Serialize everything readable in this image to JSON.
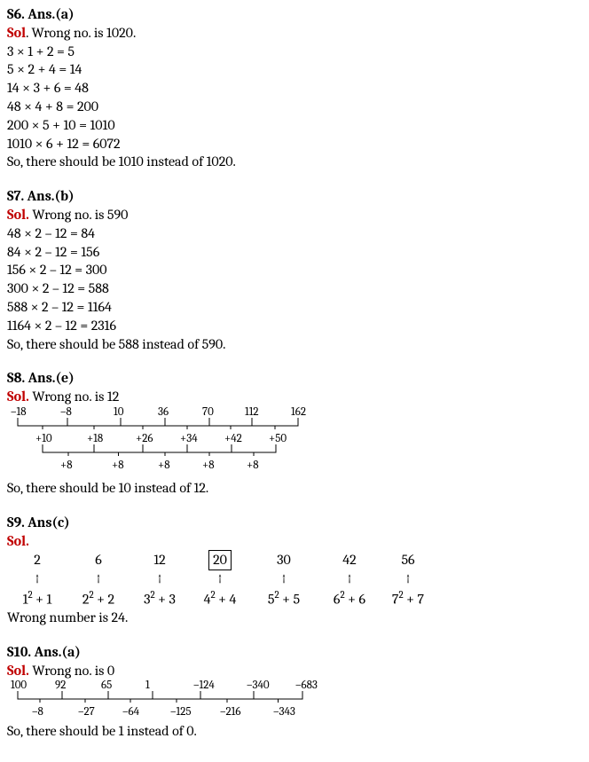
{
  "s6": {
    "heading": "S6. Ans.(a)",
    "sol_label": "Sol",
    "wrong_text": ". Wrong no. is 1020.",
    "lines": [
      "3 × 1 + 2 = 5",
      "5 × 2 + 4 = 14",
      "14 × 3 + 6 = 48",
      "48 × 4 + 8 = 200",
      "200 × 5 + 10 = 1010",
      "1010 × 6 + 12 = 6072"
    ],
    "conclusion": "So, there should be 1010 instead of 1020."
  },
  "s7": {
    "heading": "S7. Ans.(b)",
    "sol_label": "Sol.",
    "wrong_text": " Wrong no. is 590",
    "lines": [
      "48 × 2 – 12 = 84",
      "84 × 2 – 12 = 156",
      "156 × 2 – 12 = 300",
      "300 × 2 – 12 = 588",
      "588 × 2 – 12 = 1164",
      "1164 × 2 – 12 = 2316"
    ],
    "conclusion": "So, there should be 588 instead of 590."
  },
  "s8": {
    "heading": "S8. Ans.(e)",
    "sol_label": "Sol.",
    "wrong_text": " Wrong no. is 12",
    "top_values": [
      "–18",
      "–8",
      "10",
      "36",
      "70",
      "112",
      "162"
    ],
    "mid_values": [
      "+10",
      "+18",
      "+26",
      "+34",
      "+42",
      "+50"
    ],
    "bot_values": [
      "+8",
      "+8",
      "+8",
      "+8",
      "+8"
    ],
    "conclusion": "So, there should be 10 instead of 12."
  },
  "s9": {
    "heading": "S9. Ans(c)",
    "sol_label": "Sol.",
    "series": [
      "2",
      "6",
      "12",
      "20",
      "30",
      "42",
      "56"
    ],
    "boxed_index": 3,
    "formulas": [
      {
        "base": "1",
        "add": "1"
      },
      {
        "base": "2",
        "add": "2"
      },
      {
        "base": "3",
        "add": "3"
      },
      {
        "base": "4",
        "add": "4"
      },
      {
        "base": "5",
        "add": "5"
      },
      {
        "base": "6",
        "add": "6"
      },
      {
        "base": "7",
        "add": "7"
      }
    ],
    "conclusion": "Wrong number is 24."
  },
  "s10": {
    "heading": "S10. Ans.(a)",
    "sol_label": "Sol.",
    "wrong_text": " Wrong no. is 0",
    "top_values": [
      "100",
      "92",
      "65",
      "1",
      "–124",
      "–340",
      "–683"
    ],
    "mid_values": [
      "–8",
      "–27",
      "–64",
      "–125",
      "–216",
      "–343"
    ],
    "conclusion": "So, there should be 1 instead of 0."
  },
  "layout": {
    "s8_top_x": [
      4,
      60,
      120,
      170,
      220,
      268,
      320
    ],
    "s8_mid_x": [
      32,
      90,
      145,
      195,
      245,
      295
    ],
    "s8_bot_x": [
      60,
      118,
      170,
      220,
      270
    ],
    "s9_col_widths": [
      68,
      70,
      68,
      68,
      76,
      72,
      60
    ],
    "s10_top_x": [
      4,
      54,
      106,
      156,
      210,
      270,
      325
    ],
    "s10_mid_x": [
      28,
      80,
      130,
      184,
      240,
      300
    ],
    "font_small": 13,
    "bracket_color": "#000000"
  }
}
